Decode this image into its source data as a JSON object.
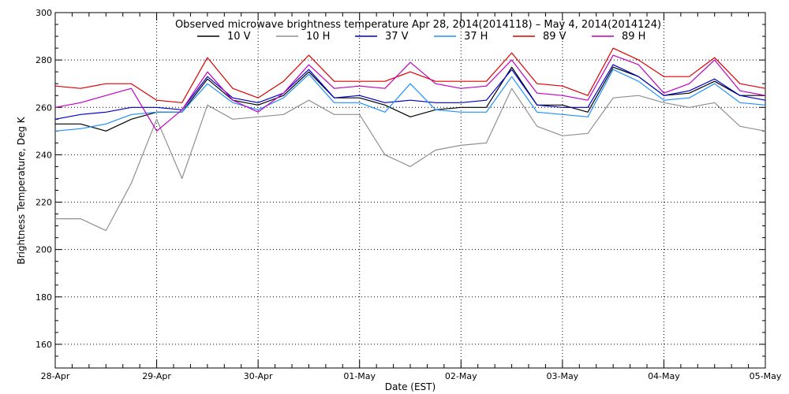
{
  "chart_data": {
    "type": "line",
    "title": "Observed microwave brightness temperature Apr 28, 2014(2014118) – May  4, 2014(2014124)",
    "xlabel": "Date (EST)",
    "ylabel": "Brightness Temperature, Deg K",
    "ylim": [
      150,
      300
    ],
    "xlim": [
      0,
      7
    ],
    "y_ticks": [
      160,
      180,
      200,
      220,
      240,
      260,
      280,
      300
    ],
    "x_ticks": [
      {
        "x": 0,
        "label": "28-Apr"
      },
      {
        "x": 1,
        "label": "29-Apr"
      },
      {
        "x": 2,
        "label": "30-Apr"
      },
      {
        "x": 3,
        "label": "01-May"
      },
      {
        "x": 4,
        "label": "02-May"
      },
      {
        "x": 5,
        "label": "03-May"
      },
      {
        "x": 6,
        "label": "04-May"
      },
      {
        "x": 7,
        "label": "05-May"
      }
    ],
    "grid": true,
    "legend_position": "top-center",
    "x": [
      0,
      0.25,
      0.5,
      0.75,
      1,
      1.25,
      1.5,
      1.75,
      2,
      2.25,
      2.5,
      2.75,
      3,
      3.25,
      3.5,
      3.75,
      4,
      4.25,
      4.5,
      4.75,
      5,
      5.25,
      5.5,
      5.75,
      6,
      6.25,
      6.5,
      6.75,
      7
    ],
    "series": [
      {
        "name": "10 V",
        "color": "#000000",
        "values": [
          253,
          253,
          250,
          255,
          258,
          258,
          272,
          263,
          261,
          265,
          275,
          264,
          264,
          261,
          256,
          259,
          260,
          260,
          277,
          261,
          261,
          258,
          277,
          273,
          265,
          266,
          271,
          265,
          265
        ]
      },
      {
        "name": "10 H",
        "color": "#909090",
        "values": [
          213,
          213,
          208,
          228,
          255,
          230,
          261,
          255,
          256,
          257,
          263,
          257,
          257,
          240,
          235,
          242,
          244,
          245,
          268,
          252,
          248,
          249,
          264,
          265,
          262,
          260,
          262,
          252,
          250
        ]
      },
      {
        "name": "37 V",
        "color": "#0000cc",
        "values": [
          255,
          257,
          258,
          260,
          260,
          259,
          273,
          264,
          262,
          266,
          276,
          264,
          265,
          262,
          263,
          262,
          262,
          263,
          276,
          261,
          260,
          260,
          278,
          273,
          265,
          267,
          272,
          265,
          263
        ]
      },
      {
        "name": "37 H",
        "color": "#1e90ff",
        "values": [
          250,
          251,
          253,
          257,
          258,
          258,
          270,
          262,
          259,
          264,
          274,
          262,
          262,
          258,
          270,
          259,
          258,
          258,
          273,
          258,
          257,
          256,
          276,
          271,
          263,
          264,
          270,
          262,
          261
        ]
      },
      {
        "name": "89 V",
        "color": "#dd0000",
        "values": [
          269,
          268,
          270,
          270,
          263,
          262,
          281,
          268,
          264,
          271,
          282,
          271,
          271,
          271,
          275,
          271,
          271,
          271,
          283,
          270,
          269,
          265,
          285,
          280,
          273,
          273,
          281,
          270,
          268
        ]
      },
      {
        "name": "89 H",
        "color": "#c000c0",
        "values": [
          260,
          262,
          265,
          268,
          250,
          259,
          275,
          263,
          258,
          266,
          278,
          268,
          269,
          268,
          279,
          270,
          268,
          269,
          280,
          266,
          265,
          263,
          282,
          278,
          266,
          270,
          280,
          267,
          265
        ]
      }
    ]
  }
}
